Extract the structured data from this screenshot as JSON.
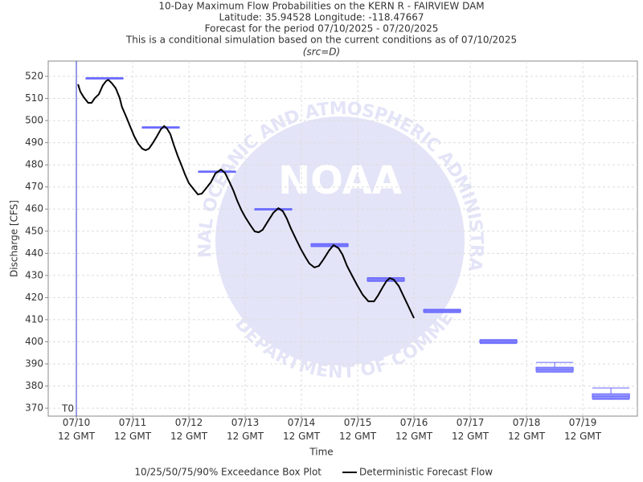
{
  "chart_data": {
    "type": "line",
    "title": "10-Day Maximum Flow Probabilities on the KERN R - FAIRVIEW DAM",
    "subtitle": [
      "Latitude: 35.94528 Longitude: -118.47667",
      "Forecast for the period 07/10/2025 - 07/20/2025",
      "This is a conditional simulation based on the current conditions as of 07/10/2025"
    ],
    "source": "(src=D)",
    "x_label": "Time",
    "y_label": "Discharge [CFS]",
    "t0_label": "T0",
    "watermark": {
      "name": "NOAA",
      "ring_top": "NATIONAL OCEANIC AND ATMOSPHERIC ADMINISTRATION",
      "ring_bottom": "U.S. DEPARTMENT OF COMMERCE"
    },
    "xlim": [
      -0.5,
      9.97
    ],
    "ylim": [
      366.4,
      526.9
    ],
    "xticks": [
      {
        "value": 0,
        "label": "07/10\n12 GMT"
      },
      {
        "value": 1,
        "label": "07/11\n12 GMT"
      },
      {
        "value": 2,
        "label": "07/12\n12 GMT"
      },
      {
        "value": 3,
        "label": "07/13\n12 GMT"
      },
      {
        "value": 4,
        "label": "07/14\n12 GMT"
      },
      {
        "value": 5,
        "label": "07/15\n12 GMT"
      },
      {
        "value": 6,
        "label": "07/16\n12 GMT"
      },
      {
        "value": 7,
        "label": "07/17\n12 GMT"
      },
      {
        "value": 8,
        "label": "07/18\n12 GMT"
      },
      {
        "value": 9,
        "label": "07/19\n12 GMT"
      }
    ],
    "yticks": [
      370,
      380,
      390,
      400,
      410,
      420,
      430,
      440,
      450,
      460,
      470,
      480,
      490,
      500,
      510,
      520
    ],
    "grid": true,
    "boxes": {
      "name": "10/25/50/75/90% Exceedance Box Plot",
      "color": "#9999ff",
      "edge_color": "#6666ff",
      "x": [
        0.5,
        1.5,
        2.5,
        3.5,
        4.5,
        5.5,
        6.5,
        7.5,
        8.5,
        9.5
      ],
      "p10": [
        519,
        496.8,
        476.8,
        459.8,
        443,
        427.3,
        413.2,
        399.2,
        386.3,
        374
      ],
      "p25": [
        519.1,
        496.9,
        476.9,
        459.9,
        443.2,
        427.6,
        413.5,
        399.6,
        386.7,
        374.4
      ],
      "p50": [
        519.2,
        497,
        477,
        460,
        443.7,
        428.2,
        414,
        400.2,
        387.6,
        375.4
      ],
      "p75": [
        519.3,
        497.1,
        477.1,
        460.1,
        444.2,
        428.8,
        414.5,
        400.8,
        388.5,
        376.5
      ],
      "p90": [
        519.4,
        497.2,
        477.2,
        460.2,
        444.4,
        429,
        414.7,
        401,
        390.7,
        379.1
      ]
    },
    "series": [
      {
        "name": "Deterministic Forecast Flow",
        "color": "#000000",
        "x": [
          0.03,
          0.07,
          0.13,
          0.21,
          0.27,
          0.33,
          0.4,
          0.47,
          0.53,
          0.57,
          0.63,
          0.7,
          0.77,
          0.81,
          0.89,
          0.96,
          1.03,
          1.1,
          1.17,
          1.23,
          1.29,
          1.36,
          1.43,
          1.5,
          1.56,
          1.61,
          1.67,
          1.73,
          1.8,
          1.87,
          1.93,
          2,
          2.09,
          2.16,
          2.23,
          2.3,
          2.39,
          2.47,
          2.57,
          2.64,
          2.71,
          2.79,
          2.86,
          2.93,
          3,
          3.09,
          3.17,
          3.24,
          3.31,
          3.4,
          3.5,
          3.59,
          3.67,
          3.74,
          3.81,
          3.9,
          3.99,
          4.07,
          4.14,
          4.23,
          4.31,
          4.39,
          4.49,
          4.57,
          4.66,
          4.73,
          4.81,
          4.9,
          4.99,
          5.09,
          5.19,
          5.29,
          5.36,
          5.44,
          5.51,
          5.57,
          5.64,
          5.73,
          5.81,
          5.9,
          6
        ],
        "values": [
          516.4,
          513.1,
          510.6,
          508,
          508,
          510.2,
          511.9,
          515.9,
          517.9,
          518.4,
          516.9,
          514.6,
          510.2,
          506.2,
          501.5,
          497.1,
          492.8,
          489.5,
          487.3,
          486.6,
          487.3,
          489.9,
          492.8,
          496,
          497.5,
          496.4,
          493.9,
          489.1,
          484.1,
          479.7,
          475.7,
          471.7,
          468.8,
          466.6,
          467,
          469.2,
          472.1,
          476.1,
          477.9,
          476.4,
          472.8,
          468.4,
          463.7,
          459.7,
          456.4,
          452.8,
          449.9,
          449.5,
          450.6,
          454.3,
          458.3,
          460.4,
          459,
          455.7,
          451.4,
          446.6,
          441.9,
          438.3,
          435.4,
          433.6,
          434.3,
          437.2,
          441.2,
          443.7,
          442.3,
          439.4,
          434.3,
          429.9,
          425.6,
          421.2,
          418.3,
          418.3,
          420.9,
          424.5,
          427.4,
          428.8,
          428.1,
          425.2,
          420.9,
          416.1,
          410.7
        ]
      }
    ]
  }
}
